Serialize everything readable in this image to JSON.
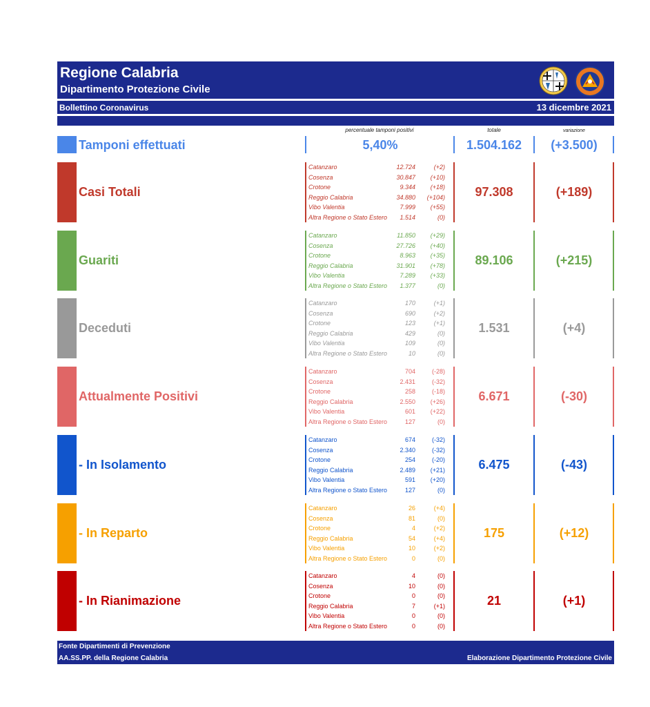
{
  "header": {
    "title": "Regione Calabria",
    "subtitle": "Dipartimento Protezione Civile",
    "bulletin_label": "Bollettino Coronavirus",
    "date": "13 dicembre 2021",
    "emblem_icon": "calabria-coat-of-arms-icon",
    "logo_icon": "protezione-civile-logo-icon",
    "logo_text": "PROTEZIONE CIVILE Regione Calabria"
  },
  "columns": {
    "pct_caption": "percentuale tamponi positivi",
    "total_caption": "totale",
    "delta_caption": "variazione"
  },
  "tamponi": {
    "label": "Tamponi effettuati",
    "pct": "5,40%",
    "total": "1.504.162",
    "delta": "(+3.500)",
    "color": "#4a86e8"
  },
  "sections": [
    {
      "label": "Casi Totali",
      "total": "97.308",
      "delta": "(+189)",
      "color": "#c0392b",
      "italic": true,
      "rows": [
        {
          "name": "Catanzaro",
          "value": "12.724",
          "delta": "(+2)"
        },
        {
          "name": "Cosenza",
          "value": "30.847",
          "delta": "(+10)"
        },
        {
          "name": "Crotone",
          "value": "9.344",
          "delta": "(+18)"
        },
        {
          "name": "Reggio Calabria",
          "value": "34.880",
          "delta": "(+104)"
        },
        {
          "name": "Vibo Valentia",
          "value": "7.999",
          "delta": "(+55)"
        },
        {
          "name": "Altra Regione o Stato Estero",
          "value": "1.514",
          "delta": "(0)"
        }
      ]
    },
    {
      "label": "Guariti",
      "total": "89.106",
      "delta": "(+215)",
      "color": "#6aa84f",
      "italic": true,
      "rows": [
        {
          "name": "Catanzaro",
          "value": "11.850",
          "delta": "(+29)"
        },
        {
          "name": "Cosenza",
          "value": "27.726",
          "delta": "(+40)"
        },
        {
          "name": "Crotone",
          "value": "8.963",
          "delta": "(+35)"
        },
        {
          "name": "Reggio Calabria",
          "value": "31.901",
          "delta": "(+78)"
        },
        {
          "name": "Vibo Valentia",
          "value": "7.289",
          "delta": "(+33)"
        },
        {
          "name": "Altra Regione o Stato Estero",
          "value": "1.377",
          "delta": "(0)"
        }
      ]
    },
    {
      "label": "Deceduti",
      "total": "1.531",
      "delta": "(+4)",
      "color": "#999999",
      "italic": true,
      "rows": [
        {
          "name": "Catanzaro",
          "value": "170",
          "delta": "(+1)"
        },
        {
          "name": "Cosenza",
          "value": "690",
          "delta": "(+2)"
        },
        {
          "name": "Crotone",
          "value": "123",
          "delta": "(+1)"
        },
        {
          "name": "Reggio Calabria",
          "value": "429",
          "delta": "(0)"
        },
        {
          "name": "Vibo Valentia",
          "value": "109",
          "delta": "(0)"
        },
        {
          "name": "Altra Regione o Stato Estero",
          "value": "10",
          "delta": "(0)"
        }
      ]
    },
    {
      "label": "Attualmente Positivi",
      "total": "6.671",
      "delta": "(-30)",
      "color": "#e06666",
      "italic": false,
      "rows": [
        {
          "name": "Catanzaro",
          "value": "704",
          "delta": "(-28)"
        },
        {
          "name": "Cosenza",
          "value": "2.431",
          "delta": "(-32)"
        },
        {
          "name": "Crotone",
          "value": "258",
          "delta": "(-18)"
        },
        {
          "name": "Reggio Calabria",
          "value": "2.550",
          "delta": "(+26)"
        },
        {
          "name": "Vibo Valentia",
          "value": "601",
          "delta": "(+22)"
        },
        {
          "name": "Altra Regione o Stato Estero",
          "value": "127",
          "delta": "(0)"
        }
      ]
    },
    {
      "label": "- In Isolamento",
      "total": "6.475",
      "delta": "(-43)",
      "color": "#1155cc",
      "italic": false,
      "rows": [
        {
          "name": "Catanzaro",
          "value": "674",
          "delta": "(-32)"
        },
        {
          "name": "Cosenza",
          "value": "2.340",
          "delta": "(-32)"
        },
        {
          "name": "Crotone",
          "value": "254",
          "delta": "(-20)"
        },
        {
          "name": "Reggio Calabria",
          "value": "2.489",
          "delta": "(+21)"
        },
        {
          "name": "Vibo Valentia",
          "value": "591",
          "delta": "(+20)"
        },
        {
          "name": "Altra Regione o Stato Estero",
          "value": "127",
          "delta": "(0)"
        }
      ]
    },
    {
      "label": "- In Reparto",
      "total": "175",
      "delta": "(+12)",
      "color": "#f6a000",
      "italic": false,
      "rows": [
        {
          "name": "Catanzaro",
          "value": "26",
          "delta": "(+4)"
        },
        {
          "name": "Cosenza",
          "value": "81",
          "delta": "(0)"
        },
        {
          "name": "Crotone",
          "value": "4",
          "delta": "(+2)"
        },
        {
          "name": "Reggio Calabria",
          "value": "54",
          "delta": "(+4)"
        },
        {
          "name": "Vibo Valentia",
          "value": "10",
          "delta": "(+2)"
        },
        {
          "name": "Altra Regione o Stato Estero",
          "value": "0",
          "delta": "(0)"
        }
      ]
    },
    {
      "label": "- In Rianimazione",
      "total": "21",
      "delta": "(+1)",
      "color": "#c00000",
      "italic": false,
      "rows": [
        {
          "name": "Catanzaro",
          "value": "4",
          "delta": "(0)"
        },
        {
          "name": "Cosenza",
          "value": "10",
          "delta": "(0)"
        },
        {
          "name": "Crotone",
          "value": "0",
          "delta": "(0)"
        },
        {
          "name": "Reggio Calabria",
          "value": "7",
          "delta": "(+1)"
        },
        {
          "name": "Vibo Valentia",
          "value": "0",
          "delta": "(0)"
        },
        {
          "name": "Altra Regione o Stato Estero",
          "value": "0",
          "delta": "(0)"
        }
      ]
    }
  ],
  "footer": {
    "source_line1": "Fonte Dipartimenti di Prevenzione",
    "source_line2": "AA.SS.PP.  della Regione Calabria",
    "elaboration": "Elaborazione Dipartimento Protezione Civile"
  }
}
